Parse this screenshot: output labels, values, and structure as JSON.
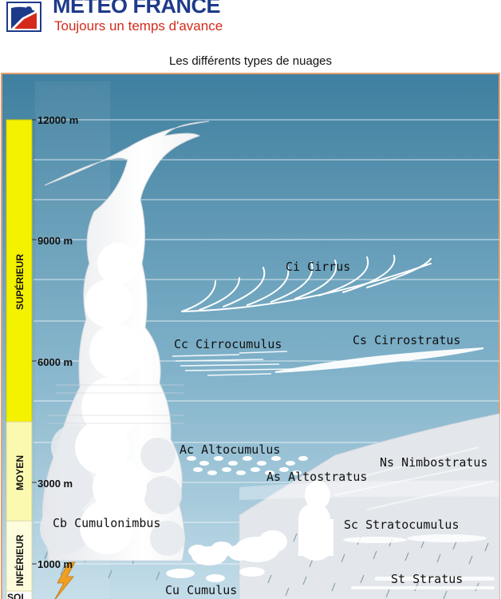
{
  "header": {
    "brand": "MÉTÉO FRANCE",
    "tagline": "Toujours un temps d'avance"
  },
  "diagram": {
    "title": "Les différents types de nuages",
    "altitudes": [
      "12000 m",
      "9000 m",
      "6000 m",
      "3000 m",
      "1000 m"
    ],
    "levels": {
      "superieur": "SUPÉRIEUR",
      "moyen": "MOYEN",
      "inferieur": "INFÉRIEUR",
      "sol": "SOL"
    },
    "clouds": {
      "cirrus": "Ci Cirrus",
      "cirrocumulus": "Cc Cirrocumulus",
      "cirrostratus": "Cs Cirrostratus",
      "altocumulus": "Ac Altocumulus",
      "nimbostratus": "Ns Nimbostratus",
      "altostratus": "As Altostratus",
      "cumulonimbus": "Cb Cumulonimbus",
      "stratocumulus": "Sc Stratocumulus",
      "stratus": "St Stratus",
      "cumulus": "Cu Cumulus"
    },
    "colors": {
      "sky_top": "#3f7f9f",
      "sky_bottom": "#c4dde9",
      "level_superieur": "#f5f200",
      "level_moyen": "#fbf8b0",
      "level_inferieur": "#fdfcdc",
      "lightning": "#f0a020"
    }
  }
}
